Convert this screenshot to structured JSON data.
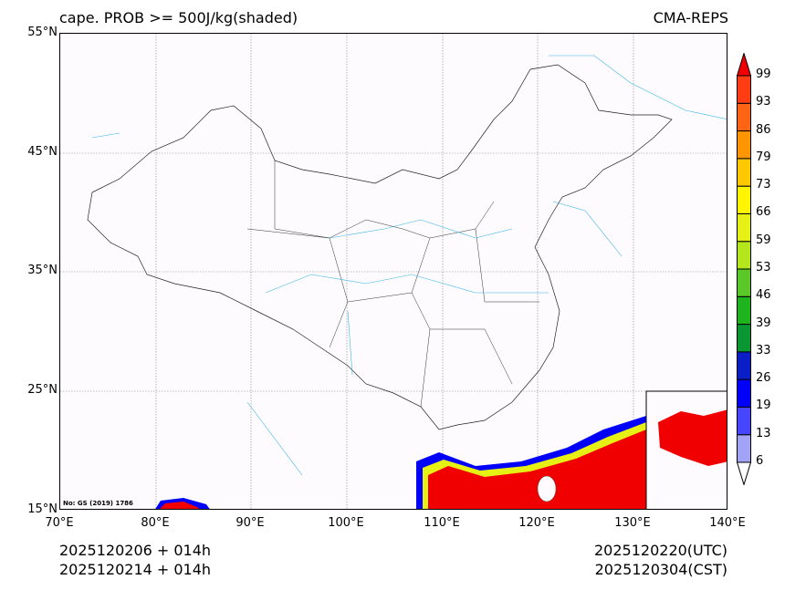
{
  "title_left": "cape. PROB >= 500J/kg(shaded)",
  "title_right": "CMA-REPS",
  "lat_labels": [
    "55°N",
    "45°N",
    "35°N",
    "25°N",
    "15°N"
  ],
  "lon_labels": [
    "70°E",
    "80°E",
    "90°E",
    "100°E",
    "110°E",
    "120°E",
    "130°E",
    "140°E"
  ],
  "footer": {
    "init_line1": "2025120206  +  014h",
    "init_line2": "2025120214  +  014h",
    "valid_utc": "2025120220(UTC)",
    "valid_cst": "2025120304(CST)"
  },
  "map_note": "No: GS (2019) 1786",
  "colorbar": {
    "levels": [
      "6",
      "13",
      "19",
      "26",
      "33",
      "39",
      "46",
      "53",
      "59",
      "66",
      "73",
      "79",
      "86",
      "93",
      "99"
    ],
    "colors": [
      "#a3a3f5",
      "#4646ff",
      "#0000fa",
      "#0a1ec8",
      "#0a9632",
      "#1eb41e",
      "#5ac828",
      "#b4e61e",
      "#e6f014",
      "#fff500",
      "#ffc800",
      "#ff9600",
      "#ff6414",
      "#ff3c14"
    ],
    "over_color": "#f00000",
    "under_color": "#ffffff"
  }
}
